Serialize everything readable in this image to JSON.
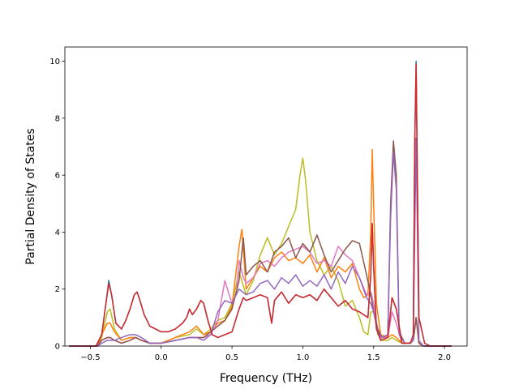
{
  "chart_data": {
    "type": "line",
    "title": "",
    "xlabel": "Frequency (THz)",
    "ylabel": "Partial Density of States",
    "xlim": [
      -0.68,
      2.16
    ],
    "ylim": [
      0,
      10.5
    ],
    "xticks": [
      -0.5,
      0.0,
      0.5,
      1.0,
      1.5,
      2.0
    ],
    "xtick_labels": [
      "−0.5",
      "0.0",
      "0.5",
      "1.0",
      "1.5",
      "2.0"
    ],
    "yticks": [
      0,
      2,
      4,
      6,
      8,
      10
    ],
    "ytick_labels": [
      "0",
      "2",
      "4",
      "6",
      "8",
      "10"
    ],
    "grid": false,
    "legend": "none",
    "series": [
      {
        "color": "#bcbd22",
        "x": [
          -0.65,
          -0.45,
          -0.42,
          -0.38,
          -0.36,
          -0.33,
          -0.28,
          -0.22,
          -0.18,
          -0.14,
          -0.08,
          0.0,
          0.1,
          0.2,
          0.25,
          0.3,
          0.35,
          0.4,
          0.45,
          0.5,
          0.55,
          0.6,
          0.65,
          0.7,
          0.75,
          0.8,
          0.85,
          0.9,
          0.95,
          0.98,
          1.0,
          1.02,
          1.05,
          1.1,
          1.15,
          1.2,
          1.25,
          1.3,
          1.35,
          1.4,
          1.43,
          1.46,
          1.48,
          1.5,
          1.53,
          1.56,
          1.6,
          1.63,
          1.66,
          1.7,
          1.75,
          1.78,
          1.8,
          1.82,
          1.85,
          1.9,
          2.05
        ],
        "y": [
          0,
          0,
          0.3,
          1.2,
          1.3,
          0.6,
          0.2,
          0.3,
          0.3,
          0.2,
          0.1,
          0.1,
          0.3,
          0.4,
          0.6,
          0.4,
          0.6,
          0.9,
          1.0,
          1.5,
          2.6,
          1.8,
          2.3,
          3.2,
          3.8,
          3.2,
          3.6,
          4.2,
          4.8,
          6.0,
          6.6,
          5.8,
          4.0,
          3.0,
          2.5,
          2.8,
          2.3,
          1.4,
          1.6,
          1.0,
          0.5,
          0.4,
          1.2,
          1.2,
          0.4,
          0.2,
          0.2,
          0.3,
          0.2,
          0.1,
          0.1,
          0.2,
          1.0,
          0.1,
          0,
          0,
          0
        ]
      },
      {
        "color": "#ff7f0e",
        "x": [
          -0.65,
          -0.45,
          -0.42,
          -0.38,
          -0.36,
          -0.33,
          -0.28,
          -0.22,
          -0.18,
          -0.14,
          -0.08,
          0.0,
          0.1,
          0.2,
          0.25,
          0.3,
          0.35,
          0.4,
          0.45,
          0.5,
          0.55,
          0.57,
          0.6,
          0.65,
          0.7,
          0.75,
          0.8,
          0.85,
          0.9,
          0.95,
          1.0,
          1.05,
          1.1,
          1.15,
          1.2,
          1.25,
          1.3,
          1.35,
          1.4,
          1.43,
          1.46,
          1.48,
          1.49,
          1.5,
          1.52,
          1.55,
          1.6,
          1.63,
          1.66,
          1.7,
          1.75,
          1.78,
          1.8,
          1.82,
          1.85,
          1.9,
          2.05
        ],
        "y": [
          0,
          0,
          0.4,
          0.8,
          0.8,
          0.5,
          0.2,
          0.3,
          0.3,
          0.2,
          0.1,
          0.1,
          0.3,
          0.5,
          0.7,
          0.4,
          0.5,
          0.8,
          0.9,
          1.4,
          3.5,
          4.1,
          2.0,
          2.4,
          2.8,
          2.6,
          3.1,
          3.3,
          3.0,
          3.1,
          2.9,
          3.2,
          2.6,
          3.1,
          2.4,
          2.8,
          2.6,
          2.9,
          2.0,
          1.7,
          1.8,
          4.0,
          6.9,
          5.0,
          1.5,
          0.4,
          0.3,
          0.4,
          0.3,
          0.1,
          0.1,
          0.2,
          1.0,
          0.1,
          0,
          0,
          0
        ]
      },
      {
        "color": "#e377c2",
        "x": [
          -0.65,
          -0.45,
          -0.42,
          -0.38,
          -0.36,
          -0.33,
          -0.28,
          -0.22,
          -0.18,
          -0.14,
          -0.08,
          0.0,
          0.1,
          0.2,
          0.25,
          0.3,
          0.35,
          0.4,
          0.45,
          0.48,
          0.5,
          0.53,
          0.55,
          0.58,
          0.6,
          0.65,
          0.7,
          0.75,
          0.8,
          0.85,
          0.9,
          0.95,
          1.0,
          1.05,
          1.1,
          1.15,
          1.2,
          1.25,
          1.3,
          1.35,
          1.4,
          1.45,
          1.48,
          1.5,
          1.52,
          1.55,
          1.6,
          1.63,
          1.66,
          1.7,
          1.75,
          1.78,
          1.8,
          1.82,
          1.85,
          1.9,
          2.05
        ],
        "y": [
          0,
          0,
          0.2,
          0.3,
          0.3,
          0.2,
          0.1,
          0.2,
          0.3,
          0.2,
          0.1,
          0.1,
          0.2,
          0.3,
          0.3,
          0.3,
          0.4,
          0.9,
          2.3,
          1.8,
          1.5,
          1.8,
          3.0,
          2.4,
          2.2,
          2.4,
          2.9,
          3.0,
          2.8,
          3.1,
          3.3,
          3.4,
          3.5,
          3.3,
          2.9,
          3.0,
          2.8,
          3.5,
          3.2,
          3.0,
          2.4,
          1.8,
          1.9,
          1.5,
          0.6,
          0.3,
          0.3,
          1.2,
          0.8,
          0.1,
          0.1,
          0.2,
          1.0,
          0.1,
          0,
          0,
          0
        ]
      },
      {
        "color": "#8c564b",
        "x": [
          -0.65,
          -0.45,
          -0.42,
          -0.38,
          -0.36,
          -0.33,
          -0.28,
          -0.22,
          -0.18,
          -0.14,
          -0.08,
          0.0,
          0.1,
          0.2,
          0.25,
          0.3,
          0.35,
          0.4,
          0.45,
          0.5,
          0.55,
          0.58,
          0.6,
          0.65,
          0.7,
          0.75,
          0.8,
          0.85,
          0.9,
          0.95,
          1.0,
          1.05,
          1.1,
          1.15,
          1.2,
          1.25,
          1.3,
          1.35,
          1.4,
          1.45,
          1.48,
          1.5,
          1.53,
          1.56,
          1.6,
          1.62,
          1.64,
          1.66,
          1.68,
          1.72,
          1.76,
          1.78,
          1.8,
          1.82,
          1.85,
          1.9,
          2.05
        ],
        "y": [
          0,
          0,
          0.2,
          0.3,
          0.3,
          0.2,
          0.1,
          0.2,
          0.3,
          0.2,
          0.1,
          0.1,
          0.2,
          0.3,
          0.3,
          0.3,
          0.5,
          0.7,
          0.9,
          1.3,
          2.3,
          3.8,
          2.5,
          2.8,
          3.0,
          2.6,
          3.3,
          3.5,
          3.8,
          3.1,
          3.6,
          3.3,
          3.9,
          3.2,
          2.6,
          3.0,
          3.4,
          3.7,
          3.6,
          2.5,
          1.8,
          1.2,
          0.6,
          0.3,
          0.4,
          5.0,
          7.2,
          6.0,
          0.5,
          0.1,
          0.1,
          0.2,
          1.0,
          0.1,
          0,
          0,
          0
        ]
      },
      {
        "color": "#9467bd",
        "x": [
          -0.65,
          -0.45,
          -0.42,
          -0.38,
          -0.36,
          -0.33,
          -0.28,
          -0.22,
          -0.18,
          -0.14,
          -0.08,
          0.0,
          0.1,
          0.2,
          0.25,
          0.3,
          0.35,
          0.4,
          0.45,
          0.5,
          0.55,
          0.6,
          0.65,
          0.7,
          0.75,
          0.8,
          0.85,
          0.9,
          0.95,
          1.0,
          1.05,
          1.1,
          1.15,
          1.2,
          1.25,
          1.3,
          1.35,
          1.4,
          1.45,
          1.48,
          1.5,
          1.53,
          1.56,
          1.6,
          1.62,
          1.64,
          1.66,
          1.68,
          1.72,
          1.76,
          1.78,
          1.8,
          1.82,
          1.85,
          1.9,
          2.05
        ],
        "y": [
          0,
          0,
          0.1,
          0.2,
          0.2,
          0.2,
          0.3,
          0.4,
          0.4,
          0.3,
          0.1,
          0.1,
          0.2,
          0.3,
          0.3,
          0.2,
          0.4,
          1.2,
          1.6,
          1.5,
          2.0,
          1.8,
          1.9,
          2.2,
          2.3,
          2.0,
          2.4,
          2.2,
          2.5,
          2.1,
          2.3,
          2.1,
          2.5,
          2.0,
          2.6,
          2.2,
          2.8,
          2.4,
          1.7,
          1.5,
          1.2,
          0.5,
          0.3,
          0.4,
          4.5,
          6.8,
          5.5,
          0.4,
          0.1,
          0.1,
          0.2,
          7.3,
          0.2,
          0,
          0,
          0
        ]
      },
      {
        "color": "#1f77b4",
        "x": [
          -0.65,
          -0.46,
          -0.42,
          -0.39,
          -0.37,
          -0.35,
          -0.32,
          -0.28,
          -0.25,
          -0.22,
          -0.19,
          -0.17,
          -0.15,
          -0.12,
          -0.08,
          -0.04,
          0.0,
          0.05,
          0.1,
          0.15,
          0.18,
          0.2,
          0.22,
          0.25,
          0.28,
          0.3,
          0.33,
          0.36,
          0.4,
          0.45,
          0.5,
          0.55,
          0.58,
          0.6,
          0.65,
          0.7,
          0.75,
          0.78,
          0.8,
          0.85,
          0.9,
          0.95,
          1.0,
          1.05,
          1.1,
          1.15,
          1.2,
          1.25,
          1.3,
          1.35,
          1.4,
          1.43,
          1.46,
          1.48,
          1.49,
          1.5,
          1.52,
          1.55,
          1.6,
          1.63,
          1.66,
          1.7,
          1.76,
          1.78,
          1.79,
          1.8,
          1.82,
          1.86,
          1.9,
          2.05
        ],
        "y": [
          0,
          0,
          0.4,
          1.5,
          2.3,
          1.8,
          0.8,
          0.6,
          0.9,
          1.3,
          1.8,
          1.9,
          1.6,
          1.1,
          0.7,
          0.6,
          0.5,
          0.5,
          0.6,
          0.8,
          1.0,
          1.3,
          1.1,
          1.3,
          1.6,
          1.5,
          0.9,
          0.4,
          0.3,
          0.4,
          0.5,
          1.3,
          1.7,
          1.6,
          1.7,
          1.8,
          1.7,
          0.8,
          1.6,
          1.9,
          1.5,
          1.8,
          1.7,
          1.8,
          1.6,
          2.0,
          1.7,
          1.4,
          1.6,
          1.3,
          1.2,
          1.1,
          1.0,
          2.5,
          4.3,
          2.8,
          0.6,
          0.2,
          0.3,
          1.7,
          1.3,
          0.1,
          0.1,
          0.4,
          7.0,
          10.0,
          1.0,
          0.1,
          0,
          0
        ]
      },
      {
        "color": "#d62728",
        "x": [
          -0.65,
          -0.46,
          -0.42,
          -0.39,
          -0.37,
          -0.35,
          -0.32,
          -0.28,
          -0.25,
          -0.22,
          -0.19,
          -0.17,
          -0.15,
          -0.12,
          -0.08,
          -0.04,
          0.0,
          0.05,
          0.1,
          0.15,
          0.18,
          0.2,
          0.22,
          0.25,
          0.28,
          0.3,
          0.33,
          0.36,
          0.4,
          0.45,
          0.5,
          0.55,
          0.58,
          0.6,
          0.65,
          0.7,
          0.75,
          0.78,
          0.8,
          0.85,
          0.9,
          0.95,
          1.0,
          1.05,
          1.1,
          1.15,
          1.2,
          1.25,
          1.3,
          1.35,
          1.4,
          1.43,
          1.46,
          1.48,
          1.49,
          1.5,
          1.52,
          1.55,
          1.6,
          1.63,
          1.66,
          1.7,
          1.76,
          1.78,
          1.79,
          1.8,
          1.82,
          1.86,
          1.9,
          2.05
        ],
        "y": [
          0,
          0,
          0.4,
          1.5,
          2.2,
          1.8,
          0.8,
          0.6,
          0.9,
          1.3,
          1.8,
          1.9,
          1.6,
          1.1,
          0.7,
          0.6,
          0.5,
          0.5,
          0.6,
          0.8,
          1.0,
          1.3,
          1.1,
          1.3,
          1.6,
          1.5,
          0.9,
          0.4,
          0.3,
          0.4,
          0.5,
          1.3,
          1.7,
          1.6,
          1.7,
          1.8,
          1.7,
          0.8,
          1.6,
          1.9,
          1.5,
          1.8,
          1.7,
          1.8,
          1.6,
          2.0,
          1.7,
          1.4,
          1.6,
          1.3,
          1.2,
          1.1,
          1.0,
          2.5,
          4.3,
          2.8,
          0.6,
          0.2,
          0.3,
          1.7,
          1.3,
          0.1,
          0.1,
          0.4,
          7.0,
          9.9,
          1.0,
          0.1,
          0,
          0
        ]
      }
    ]
  }
}
